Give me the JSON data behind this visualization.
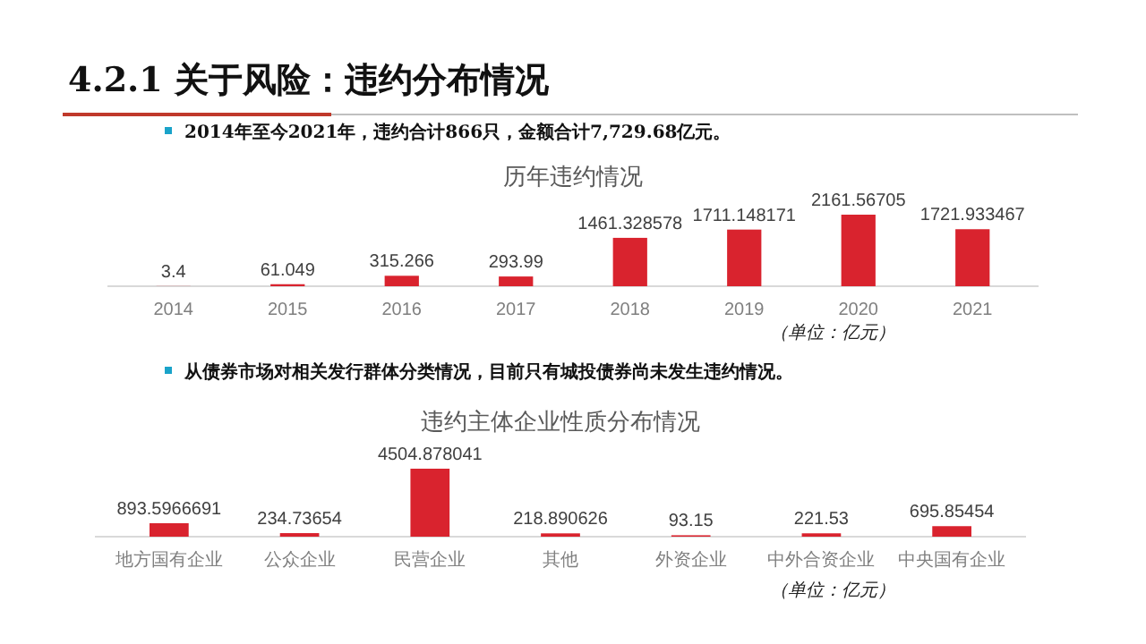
{
  "chart_data": [
    {
      "type": "bar",
      "title": "历年违约情况",
      "categories": [
        "2014",
        "2015",
        "2016",
        "2017",
        "2018",
        "2019",
        "2020",
        "2021"
      ],
      "series": [
        {
          "color": "#d9232e",
          "values": [
            3.4,
            61.049,
            315.266,
            293.99,
            1461.328578,
            1711.148171,
            2161.56705,
            1721.933467
          ]
        }
      ],
      "value_labels": [
        "3.4",
        "61.049",
        "315.266",
        "293.99",
        "1461.328578",
        "1711.148171",
        "2161.56705",
        "1721.933467"
      ],
      "data_labels": true,
      "annotations": [
        "4.2.1 关于风险：违约分布情况",
        "2014年至今2021年，违约合计866只，金额合计7,729.68亿元。",
        "（单位：亿元）"
      ]
    },
    {
      "type": "bar",
      "title": "违约主体企业性质分布情况",
      "categories": [
        "地方国有企业",
        "公众企业",
        "民营企业",
        "其他",
        "外资企业",
        "中外合资企业",
        "中央国有企业"
      ],
      "series": [
        {
          "color": "#d9232e",
          "values": [
            893.5966691,
            234.73654,
            4504.878041,
            218.890626,
            93.15,
            221.53,
            695.85454
          ]
        }
      ],
      "value_labels": [
        "893.5966691",
        "234.73654",
        "4504.878041",
        "218.890626",
        "93.15",
        "221.53",
        "695.85454"
      ],
      "data_labels": true,
      "annotations": [
        "从债券市场对相关发行群体分类情况，目前只有城投债券尚未发生违约情况。",
        "（单位：亿元）"
      ]
    }
  ]
}
